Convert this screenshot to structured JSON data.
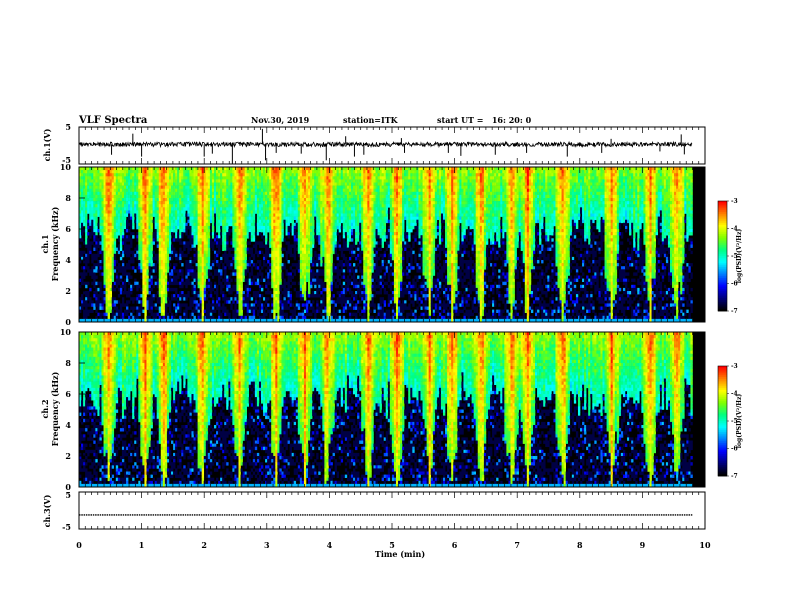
{
  "header": {
    "title": "VLF Spectra",
    "date": "Nov.30, 2019",
    "station": "station=ITK",
    "start": "start UT =   16: 20: 0"
  },
  "chart_data": [
    {
      "type": "line",
      "panel": "ch1-waveform",
      "ylabel": "ch.1(V)",
      "yticks": [
        "5",
        "-5"
      ],
      "ylim": [
        -5,
        5
      ],
      "x_unit": "min",
      "xlim": [
        0,
        10
      ],
      "data_extent_x": [
        0,
        9.8
      ],
      "baseline_value": 0.3,
      "noise_amplitude": 0.6,
      "spikes": [
        {
          "x": 0.52,
          "y": -2.5
        },
        {
          "x": 0.86,
          "y": 3.2
        },
        {
          "x": 1.0,
          "y": -3.0
        },
        {
          "x": 2.0,
          "y": -3.0
        },
        {
          "x": 2.13,
          "y": -2.2
        },
        {
          "x": 2.45,
          "y": -5.0
        },
        {
          "x": 2.93,
          "y": 4.5
        },
        {
          "x": 2.98,
          "y": -4.0
        },
        {
          "x": 3.15,
          "y": -2.0
        },
        {
          "x": 3.55,
          "y": -2.2
        },
        {
          "x": 3.95,
          "y": -4.0
        },
        {
          "x": 4.26,
          "y": 2.5
        },
        {
          "x": 4.4,
          "y": -3.0
        },
        {
          "x": 4.55,
          "y": -2.5
        },
        {
          "x": 5.15,
          "y": 2.0
        },
        {
          "x": 5.2,
          "y": -2.0
        },
        {
          "x": 5.9,
          "y": -2.0
        },
        {
          "x": 6.1,
          "y": -2.8
        },
        {
          "x": 6.65,
          "y": -2.5
        },
        {
          "x": 7.15,
          "y": -2.0
        },
        {
          "x": 7.8,
          "y": -3.0
        },
        {
          "x": 8.35,
          "y": -2.0
        },
        {
          "x": 8.5,
          "y": 1.8
        },
        {
          "x": 9.28,
          "y": -1.6
        },
        {
          "x": 9.62,
          "y": 3.0
        },
        {
          "x": 9.67,
          "y": -2.4
        }
      ]
    },
    {
      "type": "heatmap",
      "panel": "ch1-spectrogram",
      "ylabel": "ch.1\nFrequency (kHz)",
      "yticks": [
        "0",
        "2",
        "4",
        "6",
        "8",
        "10"
      ],
      "ylim": [
        0,
        10
      ],
      "xlim": [
        0,
        10
      ],
      "colorbar": {
        "label": "log(PSD)(V²/Hz)",
        "ticks": [
          "-3",
          "-4",
          "-5",
          "-6",
          "-7"
        ],
        "range": [
          -7,
          -3
        ]
      },
      "background_cutoff_khz": 7.5,
      "strong_bursts_min": [
        0.45,
        1.05,
        1.35,
        1.95,
        2.55,
        3.15,
        3.6,
        3.95,
        4.6,
        5.05,
        5.6,
        5.95,
        6.4,
        6.9,
        7.15,
        7.7,
        8.5,
        9.1,
        9.55
      ]
    },
    {
      "type": "heatmap",
      "panel": "ch2-spectrogram",
      "ylabel": "ch.2\nFrequency (kHz)",
      "yticks": [
        "0",
        "2",
        "4",
        "6",
        "8",
        "10"
      ],
      "ylim": [
        0,
        10
      ],
      "xlim": [
        0,
        10
      ],
      "colorbar": {
        "label": "log(PSD)(V²/Hz)",
        "ticks": [
          "-3",
          "-4",
          "-5",
          "-6",
          "-7"
        ],
        "range": [
          -7,
          -3
        ]
      },
      "background_cutoff_khz": 7.4,
      "strong_bursts_min": [
        0.45,
        1.05,
        1.35,
        1.95,
        2.55,
        3.15,
        3.6,
        3.95,
        4.6,
        5.05,
        5.6,
        5.95,
        6.4,
        6.9,
        7.15,
        7.7,
        8.5,
        9.1,
        9.55
      ]
    },
    {
      "type": "line",
      "panel": "ch3-waveform",
      "ylabel": "ch.3(V)",
      "yticks": [
        "5",
        "-5"
      ],
      "ylim": [
        -5,
        5
      ],
      "xlim": [
        0,
        10
      ],
      "data_extent_x": [
        0,
        9.8
      ],
      "baseline_value": -1.2
    }
  ],
  "x_axis": {
    "label": "Time (min)",
    "ticks": [
      "0",
      "1",
      "2",
      "3",
      "4",
      "5",
      "6",
      "7",
      "8",
      "9",
      "10"
    ]
  },
  "colormap": [
    "#000000",
    "#00007f",
    "#0000ff",
    "#0080ff",
    "#00ffff",
    "#00ff80",
    "#80ff00",
    "#ffff00",
    "#ff8000",
    "#ff0000",
    "#ffffff"
  ]
}
